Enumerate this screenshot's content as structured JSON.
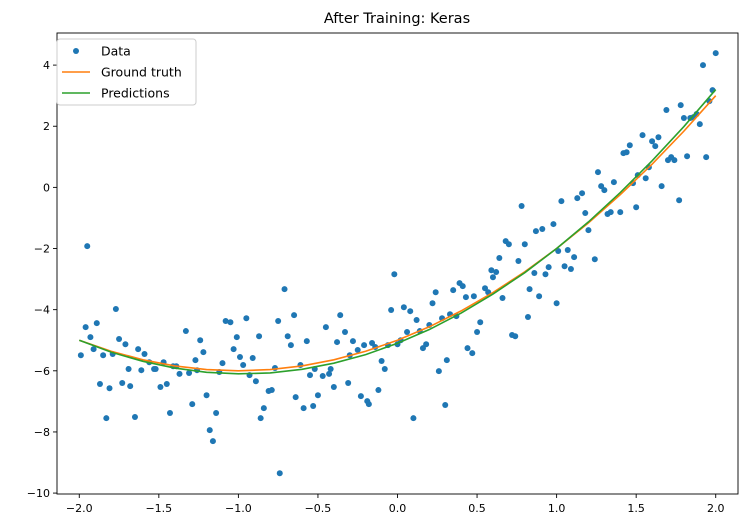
{
  "chart_data": {
    "type": "scatter+line",
    "title": "After Training: Keras",
    "xlabel": "",
    "ylabel": "",
    "xlim": [
      -2.14,
      2.14
    ],
    "ylim": [
      -10.03,
      5.05
    ],
    "xticks": [
      -2.0,
      -1.5,
      -1.0,
      -0.5,
      0.0,
      0.5,
      1.0,
      1.5,
      2.0
    ],
    "xtick_labels": [
      "−2.0",
      "−1.5",
      "−1.0",
      "−0.5",
      "0.0",
      "0.5",
      "1.0",
      "1.5",
      "2.0"
    ],
    "yticks": [
      -10,
      -8,
      -6,
      -4,
      -2,
      0,
      2,
      4
    ],
    "ytick_labels": [
      "−10",
      "−8",
      "−6",
      "−4",
      "−2",
      "0",
      "2",
      "4"
    ],
    "grid": false,
    "legend_placement": "top-left",
    "series": [
      {
        "name": "Data",
        "kind": "scatter",
        "color": "#1f77b4",
        "x": [
          -1.99,
          -1.96,
          -1.95,
          -1.93,
          -1.91,
          -1.89,
          -1.87,
          -1.85,
          -1.83,
          -1.81,
          -1.79,
          -1.77,
          -1.75,
          -1.73,
          -1.71,
          -1.69,
          -1.68,
          -1.65,
          -1.63,
          -1.61,
          -1.59,
          -1.56,
          -1.53,
          -1.52,
          -1.49,
          -1.47,
          -1.45,
          -1.43,
          -1.41,
          -1.39,
          -1.37,
          -1.33,
          -1.31,
          -1.29,
          -1.27,
          -1.26,
          -1.24,
          -1.22,
          -1.2,
          -1.18,
          -1.16,
          -1.14,
          -1.12,
          -1.1,
          -1.08,
          -1.05,
          -1.03,
          -1.01,
          -0.99,
          -0.97,
          -0.95,
          -0.93,
          -0.91,
          -0.89,
          -0.87,
          -0.86,
          -0.84,
          -0.81,
          -0.79,
          -0.77,
          -0.75,
          -0.74,
          -0.71,
          -0.69,
          -0.67,
          -0.65,
          -0.64,
          -0.61,
          -0.59,
          -0.57,
          -0.55,
          -0.53,
          -0.52,
          -0.5,
          -0.47,
          -0.45,
          -0.43,
          -0.42,
          -0.4,
          -0.38,
          -0.36,
          -0.33,
          -0.31,
          -0.3,
          -0.28,
          -0.25,
          -0.23,
          -0.21,
          -0.19,
          -0.18,
          -0.16,
          -0.14,
          -0.12,
          -0.1,
          -0.08,
          -0.06,
          -0.04,
          -0.02,
          0.0,
          0.02,
          0.04,
          0.06,
          0.08,
          0.1,
          0.12,
          0.14,
          0.16,
          0.18,
          0.2,
          0.22,
          0.24,
          0.26,
          0.28,
          0.3,
          0.31,
          0.33,
          0.35,
          0.37,
          0.39,
          0.41,
          0.43,
          0.44,
          0.47,
          0.48,
          0.5,
          0.52,
          0.55,
          0.57,
          0.59,
          0.6,
          0.62,
          0.64,
          0.66,
          0.68,
          0.7,
          0.72,
          0.74,
          0.76,
          0.78,
          0.8,
          0.82,
          0.83,
          0.86,
          0.87,
          0.89,
          0.91,
          0.93,
          0.95,
          0.98,
          1.0,
          1.01,
          1.03,
          1.05,
          1.07,
          1.09,
          1.11,
          1.13,
          1.16,
          1.18,
          1.2,
          1.24,
          1.26,
          1.28,
          1.3,
          1.32,
          1.34,
          1.36,
          1.4,
          1.42,
          1.44,
          1.46,
          1.48,
          1.5,
          1.51,
          1.54,
          1.56,
          1.58,
          1.6,
          1.62,
          1.64,
          1.66,
          1.69,
          1.7,
          1.72,
          1.74,
          1.77,
          1.78,
          1.8,
          1.82,
          1.84,
          1.86,
          1.88,
          1.9,
          1.92,
          1.94,
          1.96,
          1.98,
          2.0
        ],
        "y": [
          -5.49,
          -4.57,
          -1.92,
          -4.9,
          -5.29,
          -4.44,
          -6.43,
          -5.49,
          -7.55,
          -6.57,
          -5.45,
          -3.98,
          -4.96,
          -6.4,
          -5.13,
          -5.94,
          -6.5,
          -7.51,
          -5.29,
          -5.98,
          -5.45,
          -5.72,
          -5.94,
          -5.94,
          -6.53,
          -5.72,
          -6.43,
          -7.38,
          -5.85,
          -5.85,
          -6.1,
          -4.7,
          -6.07,
          -7.09,
          -5.65,
          -5.98,
          -5.0,
          -5.39,
          -6.8,
          -7.94,
          -8.3,
          -7.38,
          -6.04,
          -5.75,
          -4.37,
          -4.41,
          -5.29,
          -4.9,
          -5.55,
          -5.81,
          -4.28,
          -6.14,
          -5.58,
          -6.34,
          -4.87,
          -7.55,
          -7.22,
          -6.66,
          -6.63,
          -5.91,
          -4.37,
          -9.35,
          -3.33,
          -4.87,
          -5.16,
          -4.18,
          -6.86,
          -5.81,
          -7.22,
          -5.03,
          -6.14,
          -7.15,
          -5.94,
          -6.8,
          -6.17,
          -4.57,
          -6.1,
          -5.94,
          -6.53,
          -5.06,
          -4.18,
          -4.73,
          -6.4,
          -5.49,
          -5.03,
          -5.32,
          -6.83,
          -5.16,
          -6.99,
          -7.09,
          -5.09,
          -5.22,
          -6.63,
          -5.68,
          -5.94,
          -5.16,
          -4.01,
          -2.84,
          -5.13,
          -5.0,
          -3.92,
          -4.73,
          -4.05,
          -7.55,
          -4.34,
          -4.7,
          -5.26,
          -5.13,
          -4.5,
          -3.79,
          -3.43,
          -6.01,
          -4.28,
          -7.12,
          -5.65,
          -4.15,
          -3.36,
          -4.21,
          -3.13,
          -3.23,
          -3.59,
          -5.26,
          -5.42,
          -3.56,
          -4.73,
          -4.41,
          -3.3,
          -3.43,
          -2.71,
          -2.94,
          -2.77,
          -2.31,
          -3.62,
          -1.76,
          -1.86,
          -4.83,
          -4.87,
          -2.41,
          -0.61,
          -1.86,
          -4.24,
          -3.33,
          -2.8,
          -1.43,
          -3.56,
          -1.36,
          -2.84,
          -2.61,
          -1.2,
          -3.79,
          -2.08,
          -0.45,
          -2.58,
          -2.05,
          -2.67,
          -2.28,
          -0.35,
          -0.19,
          -0.84,
          -1.4,
          -2.35,
          0.5,
          0.04,
          -0.09,
          -0.87,
          -0.81,
          0.17,
          -0.81,
          1.12,
          1.15,
          1.38,
          0.14,
          -0.65,
          0.4,
          1.71,
          0.3,
          0.66,
          1.51,
          1.35,
          1.64,
          0.04,
          2.53,
          0.89,
          0.99,
          0.89,
          -0.42,
          2.69,
          2.27,
          1.02,
          2.27,
          2.3,
          2.4,
          2.07,
          4.0,
          0.99,
          2.82,
          3.18,
          4.39
        ]
      },
      {
        "name": "Ground truth",
        "kind": "line",
        "color": "#ff7f0e",
        "x": [
          -2,
          -1.8,
          -1.6,
          -1.4,
          -1.2,
          -1,
          -0.8,
          -0.6,
          -0.4,
          -0.2,
          0,
          0.2,
          0.4,
          0.6,
          0.8,
          1,
          1.2,
          1.4,
          1.6,
          1.8,
          2
        ],
        "y": [
          -5,
          -5.36,
          -5.64,
          -5.84,
          -5.96,
          -6,
          -5.96,
          -5.84,
          -5.64,
          -5.36,
          -5,
          -4.56,
          -4.04,
          -3.44,
          -2.76,
          -2,
          -1.16,
          -0.24,
          0.76,
          1.84,
          3
        ]
      },
      {
        "name": "Predictions",
        "kind": "line",
        "color": "#2ca02c",
        "x": [
          -2,
          -1.8,
          -1.6,
          -1.4,
          -1.2,
          -1,
          -0.8,
          -0.6,
          -0.4,
          -0.2,
          0,
          0.2,
          0.4,
          0.6,
          0.8,
          1,
          1.2,
          1.4,
          1.6,
          1.8,
          2
        ],
        "y": [
          -5.0,
          -5.39,
          -5.69,
          -5.91,
          -6.05,
          -6.1,
          -6.07,
          -5.95,
          -5.75,
          -5.47,
          -5.1,
          -4.65,
          -4.11,
          -3.49,
          -2.79,
          -2.0,
          -1.13,
          -0.17,
          0.87,
          1.99,
          3.2
        ]
      }
    ]
  }
}
